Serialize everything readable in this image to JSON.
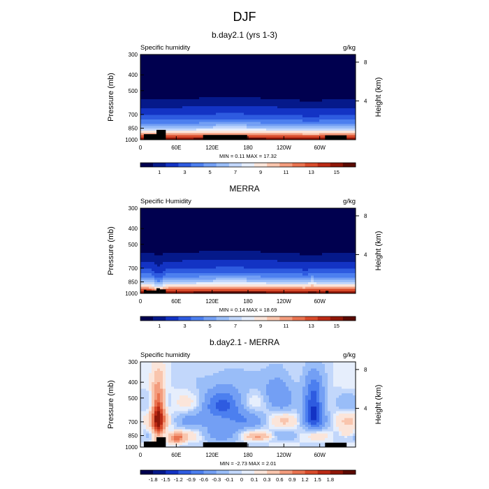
{
  "figure": {
    "title": "DJF"
  },
  "colors": {
    "diverging": [
      "#00004f",
      "#05198a",
      "#1333c4",
      "#2e5be0",
      "#4c7fef",
      "#739ff4",
      "#99bdf8",
      "#c2d7fb",
      "#e6eefc",
      "#fbe5da",
      "#f9c5ad",
      "#f39c7d",
      "#e97350",
      "#d84b2b",
      "#bb2a15",
      "#8f1708",
      "#5a0a02"
    ],
    "terrain": "#000000",
    "frame": "#000000"
  },
  "chart_data": [
    {
      "type": "heatmap",
      "id": "panel1",
      "title": "b.day2.1 (yrs 1-3)",
      "left_label": "Specific humidity",
      "right_label": "g/kg",
      "ylabel": "Pressure (mb)",
      "ylabel_right": "Height (km)",
      "y_ticks": [
        "300",
        "400",
        "500",
        "700",
        "850",
        "1000"
      ],
      "y_tick_values": [
        300,
        400,
        500,
        700,
        850,
        1000
      ],
      "y_right_ticks": [
        "8",
        "4"
      ],
      "y_right_tick_values": [
        8,
        4
      ],
      "x_ticks": [
        "0",
        "60E",
        "120E",
        "180",
        "120W",
        "60W"
      ],
      "x_tick_values": [
        0,
        60,
        120,
        180,
        240,
        300
      ],
      "xlim": [
        0,
        360
      ],
      "ylim": [
        1000,
        300
      ],
      "stats": "MIN =   0.11  MAX =  17.32",
      "colorbar_labels": [
        "1",
        "3",
        "5",
        "7",
        "9",
        "11",
        "13",
        "15"
      ],
      "colorbar_levels": [
        0.5,
        1,
        2,
        3,
        4,
        5,
        6,
        7,
        8,
        9,
        10,
        11,
        12,
        13,
        14,
        15,
        16
      ],
      "field": "humidity",
      "model": true
    },
    {
      "type": "heatmap",
      "id": "panel2",
      "title": "MERRA",
      "left_label": "Specific Humidity",
      "right_label": "g/kg",
      "ylabel": "Pressure (mb)",
      "ylabel_right": "Height (km)",
      "y_ticks": [
        "300",
        "400",
        "500",
        "700",
        "850",
        "1000"
      ],
      "y_tick_values": [
        300,
        400,
        500,
        700,
        850,
        1000
      ],
      "y_right_ticks": [
        "8",
        "4"
      ],
      "y_right_tick_values": [
        8,
        4
      ],
      "x_ticks": [
        "0",
        "60E",
        "120E",
        "180",
        "120W",
        "60W"
      ],
      "x_tick_values": [
        0,
        60,
        120,
        180,
        240,
        300
      ],
      "xlim": [
        0,
        360
      ],
      "ylim": [
        1000,
        300
      ],
      "stats": "MIN =   0.14  MAX =  18.69",
      "colorbar_labels": [
        "1",
        "3",
        "5",
        "7",
        "9",
        "11",
        "13",
        "15"
      ],
      "colorbar_levels": [
        0.5,
        1,
        2,
        3,
        4,
        5,
        6,
        7,
        8,
        9,
        10,
        11,
        12,
        13,
        14,
        15,
        16
      ],
      "field": "humidity",
      "model": false
    },
    {
      "type": "heatmap",
      "id": "panel3",
      "title": "b.day2.1 - MERRA",
      "left_label": "Specific humidity",
      "right_label": "g/kg",
      "ylabel": "Pressure (mb)",
      "ylabel_right": "Height (km)",
      "y_ticks": [
        "300",
        "400",
        "500",
        "700",
        "850",
        "1000"
      ],
      "y_tick_values": [
        300,
        400,
        500,
        700,
        850,
        1000
      ],
      "y_right_ticks": [
        "8",
        "4"
      ],
      "y_right_tick_values": [
        8,
        4
      ],
      "x_ticks": [
        "0",
        "60E",
        "120E",
        "180",
        "120W",
        "60W"
      ],
      "x_tick_values": [
        0,
        60,
        120,
        180,
        240,
        300
      ],
      "xlim": [
        0,
        360
      ],
      "ylim": [
        1000,
        300
      ],
      "stats": "MIN =  -2.73  MAX =   2.01",
      "colorbar_labels": [
        "-1.8",
        "-1.5",
        "-1.2",
        "-0.9",
        "-0.6",
        "-0.3",
        "-0.1",
        "0",
        "0.1",
        "0.3",
        "0.6",
        "0.9",
        "1.2",
        "1.5",
        "1.8"
      ],
      "colorbar_levels": [
        -1.8,
        -1.5,
        -1.2,
        -0.9,
        -0.6,
        -0.3,
        -0.1,
        0,
        0.1,
        0.3,
        0.6,
        0.9,
        1.2,
        1.5,
        1.8
      ],
      "field": "difference",
      "model": true
    }
  ]
}
